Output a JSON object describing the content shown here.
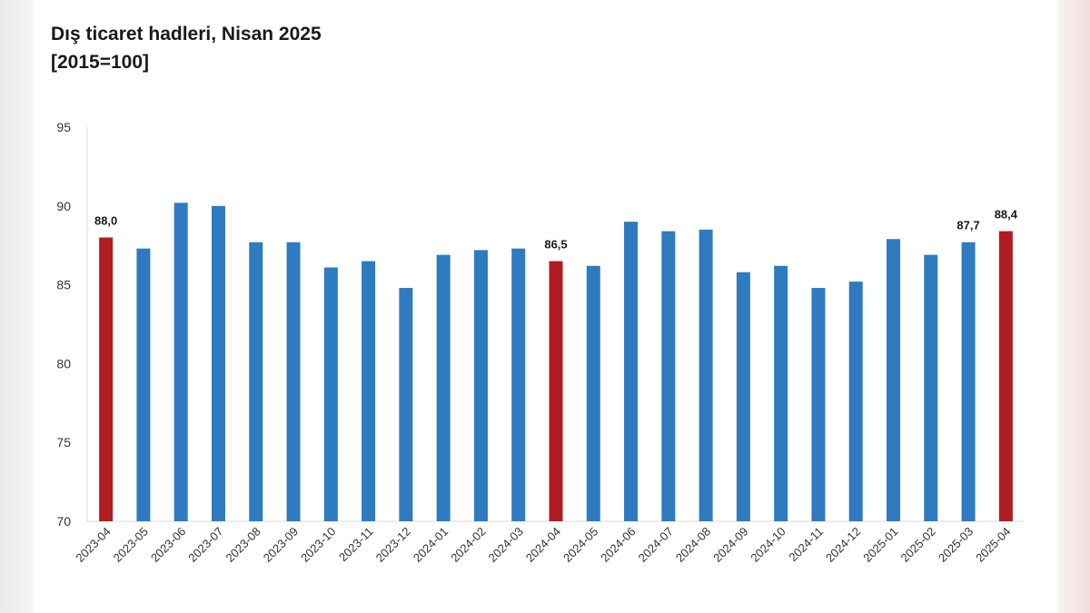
{
  "title_line1": "Dış ticaret hadleri, Nisan 2025",
  "title_line2": "[2015=100]",
  "colors": {
    "highlight": "#b01c22",
    "regular": "#2e7bbf",
    "axis": "#d9d9d9"
  },
  "chart_data": {
    "type": "bar",
    "ylim": [
      70,
      95
    ],
    "yticks": [
      70,
      75,
      80,
      85,
      90,
      95
    ],
    "categories": [
      "2023-04",
      "2023-05",
      "2023-06",
      "2023-07",
      "2023-08",
      "2023-09",
      "2023-10",
      "2023-11",
      "2023-12",
      "2024-01",
      "2024-02",
      "2024-03",
      "2024-04",
      "2024-05",
      "2024-06",
      "2024-07",
      "2024-08",
      "2024-09",
      "2024-10",
      "2024-11",
      "2024-12",
      "2025-01",
      "2025-02",
      "2025-03",
      "2025-04"
    ],
    "values": [
      88.0,
      87.3,
      90.2,
      90.0,
      87.7,
      87.7,
      86.1,
      86.5,
      84.8,
      86.9,
      87.2,
      87.3,
      86.5,
      86.2,
      89.0,
      88.4,
      88.5,
      85.8,
      86.2,
      84.8,
      85.2,
      87.9,
      86.9,
      87.7,
      88.4
    ],
    "highlighted": [
      "2023-04",
      "2024-04",
      "2025-04"
    ],
    "data_labels": [
      {
        "category": "2023-04",
        "text": "88,0"
      },
      {
        "category": "2024-04",
        "text": "86,5"
      },
      {
        "category": "2025-03",
        "text": "87,7"
      },
      {
        "category": "2025-04",
        "text": "88,4"
      }
    ]
  }
}
